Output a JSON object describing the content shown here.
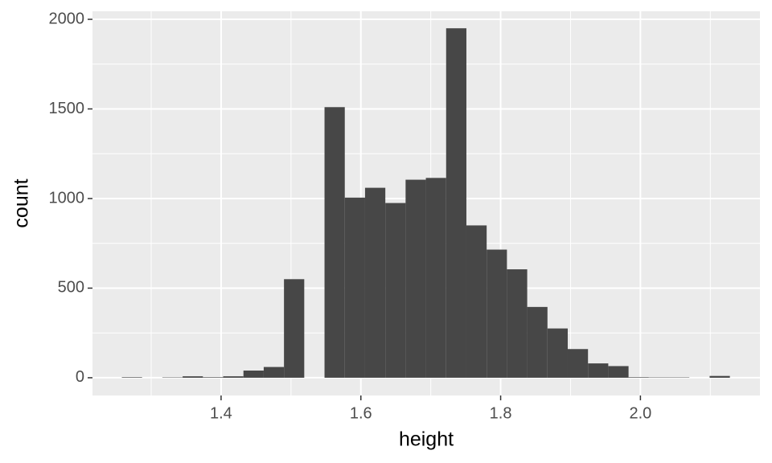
{
  "chart_data": {
    "type": "histogram",
    "x_label": "height",
    "y_label": "count",
    "bins": [
      1.258,
      1.287,
      1.316,
      1.345,
      1.374,
      1.403,
      1.432,
      1.461,
      1.49,
      1.519,
      1.548,
      1.577,
      1.606,
      1.635,
      1.664,
      1.693,
      1.722,
      1.751,
      1.78,
      1.809,
      1.838,
      1.867,
      1.896,
      1.925,
      1.954,
      1.983,
      2.012,
      2.041,
      2.07,
      2.099,
      2.128
    ],
    "values": [
      3,
      0,
      2,
      8,
      3,
      8,
      40,
      60,
      550,
      0,
      1510,
      1005,
      1060,
      975,
      1105,
      1115,
      1950,
      850,
      715,
      605,
      395,
      275,
      160,
      80,
      65,
      3,
      2,
      2,
      0,
      10
    ],
    "color": "#474747",
    "xlim": [
      1.216,
      2.171
    ],
    "ylim": [
      -99,
      2045
    ],
    "xticks": [
      1.4,
      1.6,
      1.8,
      {
        "value": 2,
        "label": "2.0"
      }
    ],
    "yticks": [
      0,
      500,
      1000,
      1500,
      2000
    ],
    "x_minor_ticks": [
      1.3,
      1.5,
      1.7,
      1.9,
      2.1
    ],
    "y_minor_ticks": [
      250,
      750,
      1250,
      1750
    ],
    "grid": true,
    "panel_color": "#ebebeb"
  }
}
